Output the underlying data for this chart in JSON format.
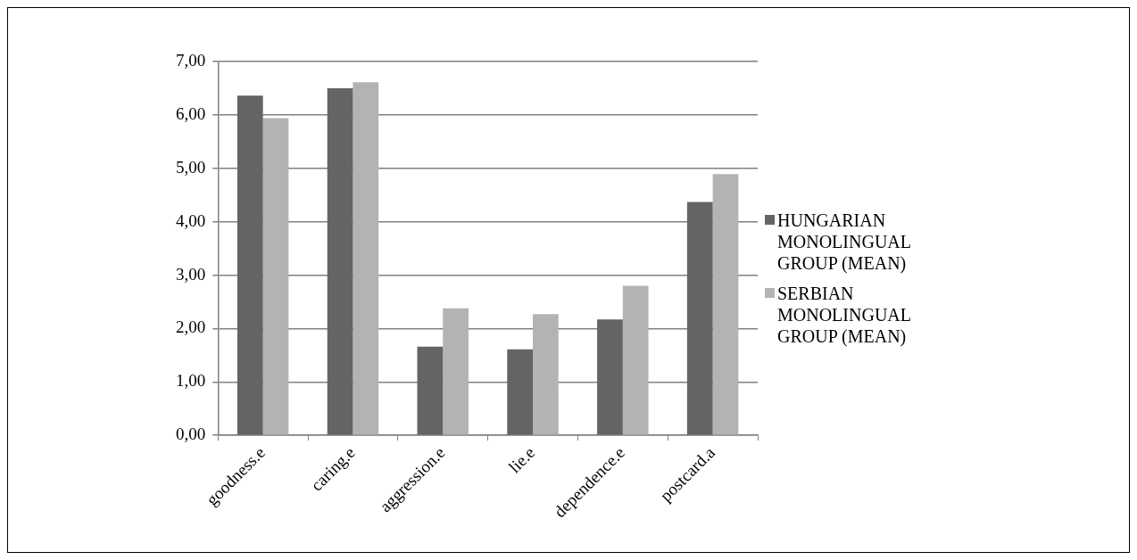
{
  "chart_data": {
    "type": "bar",
    "categories": [
      "goodness.e",
      "caring.e",
      "aggression.e",
      "lie.e",
      "dependence.e",
      "postcard.a"
    ],
    "series": [
      {
        "name": "HUNGARIAN MONOLINGUAL GROUP (MEAN)",
        "color": "#646466",
        "values": [
          6.36,
          6.5,
          1.66,
          1.61,
          2.17,
          4.37
        ]
      },
      {
        "name": "SERBIAN MONOLINGUAL GROUP (MEAN)",
        "color": "#b2b3b5",
        "values": [
          5.94,
          6.61,
          2.38,
          2.27,
          2.8,
          4.89
        ]
      }
    ],
    "ylim": [
      0,
      7
    ],
    "yticks": [
      {
        "value": 0,
        "label": "0,00"
      },
      {
        "value": 1,
        "label": "1,00"
      },
      {
        "value": 2,
        "label": "2,00"
      },
      {
        "value": 3,
        "label": "3,00"
      },
      {
        "value": 4,
        "label": "4,00"
      },
      {
        "value": 5,
        "label": "5,00"
      },
      {
        "value": 6,
        "label": "6,00"
      },
      {
        "value": 7,
        "label": "7,00"
      }
    ],
    "grid": "y",
    "legend": "right"
  }
}
